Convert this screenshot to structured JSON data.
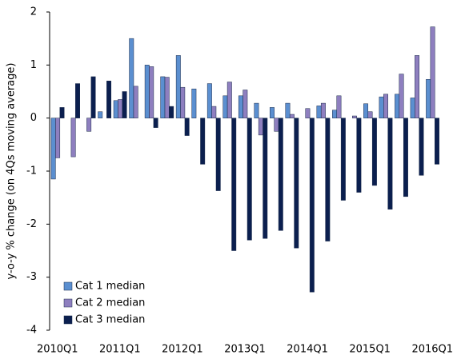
{
  "chart_data": {
    "type": "bar",
    "y_label": "y-o-y % change (on 4Qs moving average)",
    "categories": [
      "2010Q1",
      null,
      null,
      null,
      "2011Q1",
      null,
      null,
      null,
      "2012Q1",
      null,
      null,
      null,
      "2013Q1",
      null,
      null,
      null,
      "2014Q1",
      null,
      null,
      null,
      "2015Q1",
      null,
      null,
      null,
      "2016Q1"
    ],
    "series": [
      {
        "name": "Cat 1 median",
        "color": "#5b8fd0",
        "values": [
          -1.15,
          0,
          0,
          0.12,
          0.33,
          1.5,
          1.0,
          0.78,
          1.18,
          0.55,
          0.65,
          0.42,
          0.42,
          0.28,
          0.2,
          0.28,
          0,
          0.23,
          0.15,
          0,
          0.27,
          0.4,
          0.45,
          0.38,
          0.73
        ]
      },
      {
        "name": "Cat 2 median",
        "color": "#8e7fbf",
        "values": [
          -0.75,
          -0.73,
          -0.25,
          0,
          0.35,
          0.6,
          0.97,
          0.77,
          0.58,
          0,
          0.22,
          0.68,
          0.53,
          -0.32,
          -0.25,
          0.07,
          0.18,
          0.28,
          0.42,
          0.04,
          0.12,
          0.45,
          0.83,
          1.18,
          1.72
        ]
      },
      {
        "name": "Cat 3 median",
        "color": "#0b1f4f",
        "values": [
          0.2,
          0.65,
          0.78,
          0.7,
          0.5,
          0,
          -0.18,
          0.22,
          -0.33,
          -0.87,
          -1.37,
          -2.5,
          -2.3,
          -2.27,
          -2.12,
          -2.45,
          -3.28,
          -2.32,
          -1.55,
          -1.4,
          -1.27,
          -1.72,
          -1.48,
          -1.08,
          -0.87
        ]
      }
    ],
    "ylim": [
      -4,
      2
    ],
    "yticks": [
      -4,
      -3,
      -2,
      -1,
      0,
      1,
      2
    ],
    "legend": "lower-left"
  }
}
